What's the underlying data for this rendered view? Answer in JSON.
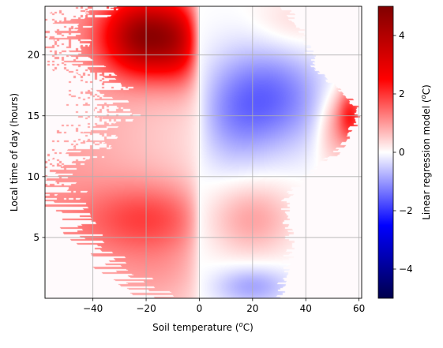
{
  "chart_data": {
    "type": "heatmap",
    "title": "",
    "xlabel_text": "Soil temperature (",
    "xlabel_sup": "o",
    "xlabel_tail": "C)",
    "ylabel": "Local time of day (hours)",
    "colorbar_label_text": "Linear regression model (",
    "colorbar_label_sup": "o",
    "colorbar_label_tail": "C)",
    "xlim": [
      -58,
      61
    ],
    "ylim": [
      0,
      24
    ],
    "clim": [
      -5,
      5
    ],
    "colormap": "seismic",
    "grid": true,
    "x_ticks": [
      -40,
      -20,
      0,
      20,
      40,
      60
    ],
    "x_tick_labels": [
      "−40",
      "−20",
      "0",
      "20",
      "40",
      "60"
    ],
    "y_ticks": [
      5,
      10,
      15,
      20
    ],
    "y_tick_labels": [
      "5",
      "10",
      "15",
      "20"
    ],
    "colorbar_ticks": [
      -4,
      -2,
      0,
      2,
      4
    ],
    "colorbar_tick_labels": [
      "−4",
      "−2",
      "0",
      "2",
      "4"
    ],
    "data_left_edge_by_hour": [
      [
        0,
        -18
      ],
      [
        1,
        -25
      ],
      [
        2,
        -32
      ],
      [
        3,
        -38
      ],
      [
        4,
        -42
      ],
      [
        5,
        -46
      ],
      [
        6,
        -49
      ],
      [
        7,
        -52
      ],
      [
        8,
        -55
      ],
      [
        9,
        -54
      ],
      [
        10,
        -52
      ],
      [
        11,
        -50
      ],
      [
        12,
        -46
      ],
      [
        13,
        -40
      ],
      [
        14,
        -38
      ],
      [
        15,
        -34
      ],
      [
        16,
        -34
      ],
      [
        17,
        -36
      ],
      [
        18,
        -38
      ],
      [
        19,
        -44
      ],
      [
        20,
        -50
      ],
      [
        21,
        -52
      ],
      [
        22,
        -54
      ],
      [
        23,
        -48
      ],
      [
        24,
        -30
      ]
    ],
    "data_right_edge_by_hour": [
      [
        0,
        30
      ],
      [
        1,
        31
      ],
      [
        2,
        32
      ],
      [
        3,
        33
      ],
      [
        4,
        34
      ],
      [
        5,
        34
      ],
      [
        6,
        33
      ],
      [
        7,
        32
      ],
      [
        8,
        32
      ],
      [
        9,
        36
      ],
      [
        10,
        40
      ],
      [
        11,
        45
      ],
      [
        12,
        52
      ],
      [
        13,
        56
      ],
      [
        14,
        58
      ],
      [
        15,
        59
      ],
      [
        16,
        58
      ],
      [
        17,
        54
      ],
      [
        18,
        48
      ],
      [
        19,
        44
      ],
      [
        20,
        42
      ],
      [
        21,
        40
      ],
      [
        22,
        38
      ],
      [
        23,
        35
      ],
      [
        24,
        32
      ]
    ],
    "warm_pattern_summary": {
      "cold_side_red_peak": {
        "x": -20,
        "y": 21,
        "value": 4.2
      },
      "afternoon_blue_center": {
        "x": 28,
        "y": 16.5,
        "value": -1.3
      },
      "morning_pink_center": {
        "x": -12,
        "y": 6.5,
        "value": 1.2
      },
      "hot_afternoon_red": {
        "x": 57,
        "y": 15,
        "value": 2.0
      }
    }
  }
}
